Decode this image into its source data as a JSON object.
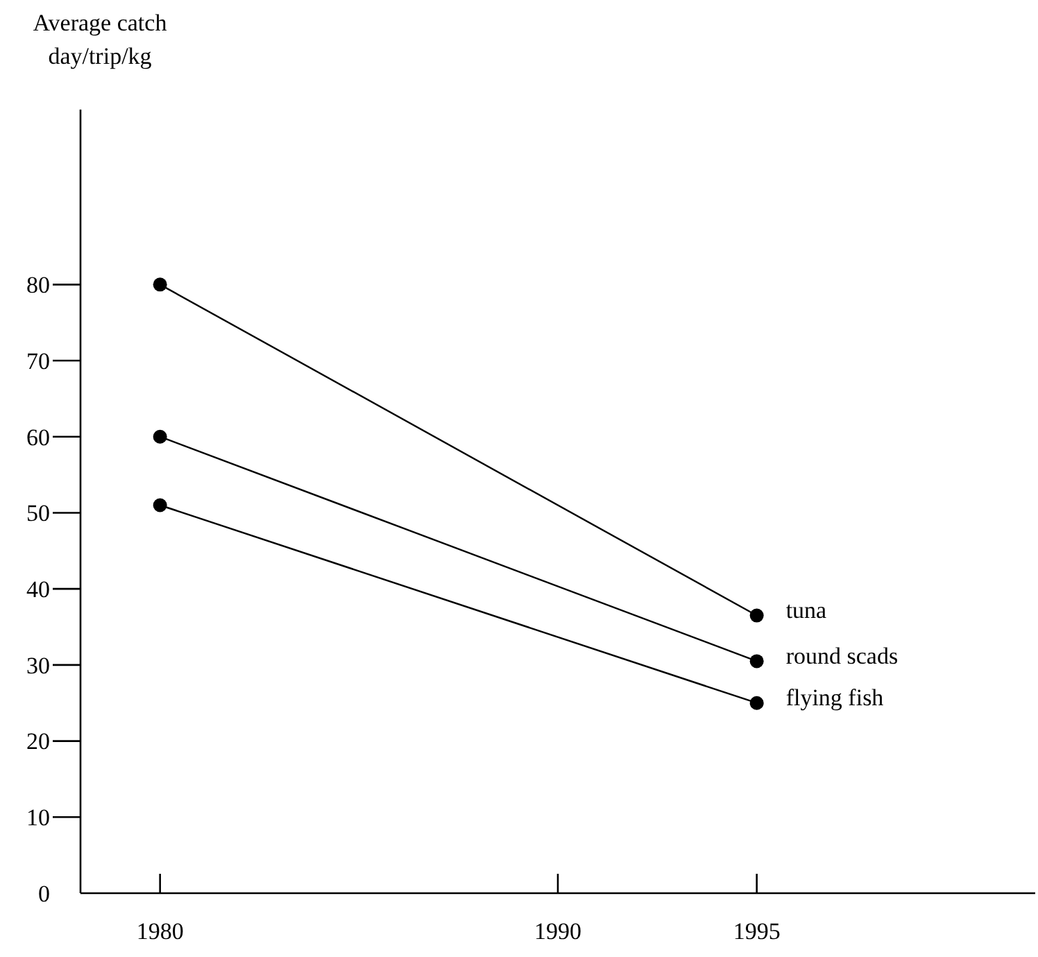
{
  "chart_data": {
    "type": "line",
    "ylabel": "Average catch\nday/trip/kg",
    "x": [
      1980,
      1995
    ],
    "series": [
      {
        "name": "tuna",
        "color": "#000000",
        "values": [
          80,
          36.5
        ]
      },
      {
        "name": "round scads",
        "color": "#000000",
        "values": [
          60,
          30.5
        ]
      },
      {
        "name": "flying fish",
        "color": "#000000",
        "values": [
          51,
          25
        ]
      }
    ],
    "xlim": [
      1978,
      2002
    ],
    "xticks": [
      1980,
      1990,
      1995
    ],
    "ylim": [
      0,
      103
    ],
    "yticks": [
      0,
      10,
      20,
      30,
      40,
      50,
      60,
      70,
      80
    ],
    "marker": "circle",
    "line_style": "solid",
    "grid": false
  }
}
